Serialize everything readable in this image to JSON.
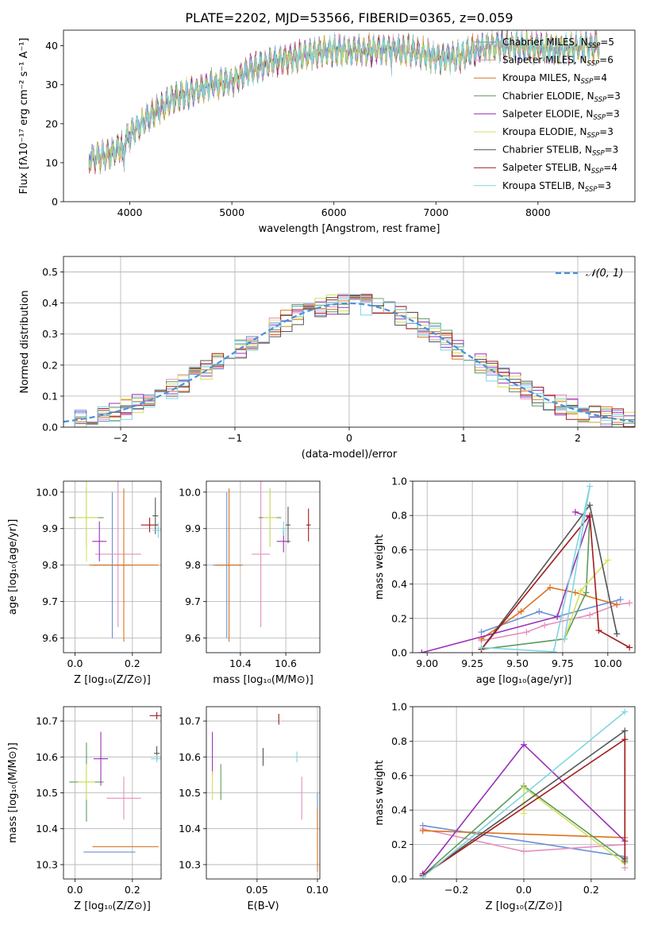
{
  "figure": {
    "title": "PLATE=2202, MJD=53566, FIBERID=0365, z=0.059"
  },
  "model_colors": [
    "#6a8fd8",
    "#e58fbf",
    "#d9731f",
    "#5c9c5c",
    "#9b30b8",
    "#d6df5c",
    "#555555",
    "#a51b1b",
    "#7fd6df"
  ],
  "chart_data": [
    {
      "id": "spectrum",
      "type": "line",
      "xlabel": "wavelength [Angstrom, rest frame]",
      "ylabel": "Flux [fλ10⁻¹⁷ erg cm⁻² s⁻¹ A⁻¹]",
      "xlim": [
        3350,
        8950
      ],
      "ylim": [
        0,
        44
      ],
      "xticks": [
        4000,
        5000,
        6000,
        7000,
        8000
      ],
      "yticks": [
        0,
        10,
        20,
        30,
        40
      ],
      "legend_position": "top-right",
      "series": [
        {
          "name": "Chabrier MILES, N",
          "sub": "SSP",
          "suffix": "=5"
        },
        {
          "name": "Salpeter MILES, N",
          "sub": "SSP",
          "suffix": "=6"
        },
        {
          "name": "Kroupa MILES, N",
          "sub": "SSP",
          "suffix": "=4"
        },
        {
          "name": "Chabrier ELODIE, N",
          "sub": "SSP",
          "suffix": "=3"
        },
        {
          "name": "Salpeter ELODIE, N",
          "sub": "SSP",
          "suffix": "=3"
        },
        {
          "name": "Kroupa ELODIE, N",
          "sub": "SSP",
          "suffix": "=3"
        },
        {
          "name": "Chabrier STELIB, N",
          "sub": "SSP",
          "suffix": "=3"
        },
        {
          "name": "Salpeter STELIB, N",
          "sub": "SSP",
          "suffix": "=4"
        },
        {
          "name": "Kroupa STELIB, N",
          "sub": "SSP",
          "suffix": "=3"
        }
      ],
      "continuum": [
        [
          3600,
          11
        ],
        [
          3800,
          12
        ],
        [
          3900,
          14
        ],
        [
          4000,
          17
        ],
        [
          4200,
          22
        ],
        [
          4400,
          26
        ],
        [
          4600,
          28
        ],
        [
          4800,
          30
        ],
        [
          5000,
          31
        ],
        [
          5200,
          34
        ],
        [
          5400,
          36
        ],
        [
          5600,
          37
        ],
        [
          5800,
          38
        ],
        [
          6000,
          39
        ],
        [
          6200,
          38.5
        ],
        [
          6400,
          39
        ],
        [
          6600,
          39
        ],
        [
          6800,
          38.5
        ],
        [
          7000,
          37
        ],
        [
          7200,
          37
        ],
        [
          7400,
          39
        ],
        [
          7600,
          40
        ],
        [
          7800,
          40
        ],
        [
          8000,
          39.5
        ],
        [
          8200,
          39
        ],
        [
          8400,
          39.5
        ],
        [
          8600,
          40
        ]
      ]
    },
    {
      "id": "residuals",
      "type": "histogram",
      "xlabel": "(data-model)/error",
      "ylabel": "Normed distribution",
      "xlim": [
        -2.5,
        2.5
      ],
      "ylim": [
        0,
        0.55
      ],
      "xticks": [
        -2,
        -1,
        0,
        1,
        2
      ],
      "yticks": [
        0.0,
        0.1,
        0.2,
        0.3,
        0.4,
        0.5
      ],
      "reference_label": "𝒩(0, 1)",
      "legend_position": "top-right",
      "bin_width": 0.1
    },
    {
      "id": "age_vs_Z",
      "type": "scatter",
      "xlabel": "Z [log₁₀(Z/Z⊙)]",
      "ylabel": "age  [log₁₀(age/yr)]",
      "xlim": [
        -0.04,
        0.3
      ],
      "ylim": [
        9.56,
        10.03
      ],
      "xticks": [
        0.0,
        0.2
      ],
      "yticks": [
        9.6,
        9.7,
        9.8,
        9.9,
        10.0
      ],
      "points": [
        {
          "x": 0.13,
          "y": 9.8,
          "xerr": 0.07,
          "yerr": 0.2
        },
        {
          "x": 0.15,
          "y": 9.83,
          "xerr": 0.08,
          "yerr": 0.2
        },
        {
          "x": 0.17,
          "y": 9.8,
          "xerr": 0.12,
          "yerr": 0.21
        },
        {
          "x": 0.04,
          "y": 9.93,
          "xerr": 0.06,
          "yerr": 0.08
        },
        {
          "x": 0.085,
          "y": 9.865,
          "xerr": 0.025,
          "yerr": 0.055
        },
        {
          "x": 0.04,
          "y": 9.93,
          "xerr": 0.04,
          "yerr": 0.12
        },
        {
          "x": 0.28,
          "y": 9.935,
          "xerr": 0.01,
          "yerr": 0.05
        },
        {
          "x": 0.26,
          "y": 9.91,
          "xerr": 0.03,
          "yerr": 0.02
        },
        {
          "x": 0.29,
          "y": 9.895,
          "xerr": 0.02,
          "yerr": 0.02
        }
      ]
    },
    {
      "id": "age_vs_mass",
      "type": "scatter",
      "xlabel": "mass [log₁₀(M/M⊙)]",
      "ylabel": "",
      "xlim": [
        10.25,
        10.75
      ],
      "ylim": [
        9.56,
        10.03
      ],
      "xticks": [
        10.4,
        10.6
      ],
      "yticks": [
        9.6,
        9.7,
        9.8,
        9.9,
        10.0
      ],
      "points": [
        {
          "x": 10.34,
          "y": 9.8,
          "xerr": 0.06,
          "yerr": 0.2
        },
        {
          "x": 10.49,
          "y": 9.83,
          "xerr": 0.04,
          "yerr": 0.2
        },
        {
          "x": 10.35,
          "y": 9.8,
          "xerr": 0.06,
          "yerr": 0.21
        },
        {
          "x": 10.53,
          "y": 9.93,
          "xerr": 0.05,
          "yerr": 0.08
        },
        {
          "x": 10.59,
          "y": 9.865,
          "xerr": 0.03,
          "yerr": 0.03
        },
        {
          "x": 10.53,
          "y": 9.93,
          "xerr": 0.03,
          "yerr": 0.08
        },
        {
          "x": 10.61,
          "y": 9.91,
          "xerr": 0.01,
          "yerr": 0.05
        },
        {
          "x": 10.7,
          "y": 9.91,
          "xerr": 0.01,
          "yerr": 0.045
        },
        {
          "x": 10.59,
          "y": 9.9,
          "xerr": 0.01,
          "yerr": 0.02
        }
      ]
    },
    {
      "id": "mass_weight_vs_age",
      "type": "line",
      "xlabel": "age  [log₁₀(age/yr)]",
      "ylabel": "mass weight",
      "xlim": [
        8.92,
        10.15
      ],
      "ylim": [
        0,
        1.0
      ],
      "xticks": [
        9.0,
        9.25,
        9.5,
        9.75,
        10.0
      ],
      "yticks": [
        0.0,
        0.2,
        0.4,
        0.6,
        0.8,
        1.0
      ],
      "series": [
        {
          "values": [
            [
              9.3,
              0.12
            ],
            [
              9.62,
              0.24
            ],
            [
              9.72,
              0.21
            ],
            [
              10.07,
              0.31
            ]
          ]
        },
        {
          "values": [
            [
              9.3,
              0.07
            ],
            [
              9.55,
              0.12
            ],
            [
              9.65,
              0.16
            ],
            [
              9.9,
              0.22
            ],
            [
              10.05,
              0.28
            ],
            [
              10.12,
              0.29
            ]
          ]
        },
        {
          "values": [
            [
              9.3,
              0.08
            ],
            [
              9.52,
              0.24
            ],
            [
              9.68,
              0.38
            ],
            [
              9.82,
              0.35
            ],
            [
              10.05,
              0.28
            ]
          ]
        },
        {
          "values": [
            [
              9.3,
              0.02
            ],
            [
              9.76,
              0.08
            ],
            [
              9.88,
              0.35
            ],
            [
              9.9,
              0.79
            ]
          ]
        },
        {
          "values": [
            [
              8.97,
              0.0
            ],
            [
              9.72,
              0.21
            ],
            [
              9.9,
              0.79
            ],
            [
              9.82,
              0.82
            ]
          ]
        },
        {
          "values": [
            [
              9.76,
              0.08
            ],
            [
              9.85,
              0.36
            ],
            [
              10.0,
              0.54
            ]
          ]
        },
        {
          "values": [
            [
              9.3,
              0.02
            ],
            [
              9.9,
              0.86
            ],
            [
              10.05,
              0.11
            ]
          ]
        },
        {
          "values": [
            [
              9.3,
              0.02
            ],
            [
              9.9,
              0.8
            ],
            [
              9.95,
              0.13
            ],
            [
              10.12,
              0.03
            ]
          ]
        },
        {
          "values": [
            [
              9.3,
              0.03
            ],
            [
              9.7,
              0.005
            ],
            [
              9.9,
              0.97
            ],
            [
              9.76,
              0.08
            ]
          ]
        }
      ]
    },
    {
      "id": "mass_vs_Z",
      "type": "scatter",
      "xlabel": "Z [log₁₀(Z/Z⊙)]",
      "ylabel": "mass [log₁₀(M/M⊙)]",
      "xlim": [
        -0.04,
        0.3
      ],
      "ylim": [
        10.26,
        10.74
      ],
      "xticks": [
        0.0,
        0.2
      ],
      "yticks": [
        10.3,
        10.4,
        10.5,
        10.6,
        10.7
      ],
      "points": [
        {
          "x": 0.12,
          "y": 10.335,
          "xerr": 0.09,
          "yerr": 0.0
        },
        {
          "x": 0.17,
          "y": 10.485,
          "xerr": 0.06,
          "yerr": 0.06
        },
        {
          "x": 0.176,
          "y": 10.35,
          "xerr": 0.115,
          "yerr": 0.0
        },
        {
          "x": 0.04,
          "y": 10.53,
          "xerr": 0.06,
          "yerr": 0.11
        },
        {
          "x": 0.09,
          "y": 10.595,
          "xerr": 0.025,
          "yerr": 0.075
        },
        {
          "x": 0.04,
          "y": 10.53,
          "xerr": 0.03,
          "yerr": 0.05
        },
        {
          "x": 0.285,
          "y": 10.61,
          "xerr": 0.01,
          "yerr": 0.02
        },
        {
          "x": 0.285,
          "y": 10.715,
          "xerr": 0.025,
          "yerr": 0.01
        },
        {
          "x": 0.285,
          "y": 10.595,
          "xerr": 0.02,
          "yerr": 0.01
        }
      ]
    },
    {
      "id": "mass_vs_ebv",
      "type": "scatter",
      "xlabel": "E(B-V)",
      "ylabel": "",
      "xlim": [
        0.008,
        0.102
      ],
      "ylim": [
        10.26,
        10.74
      ],
      "xticks": [
        0.05,
        0.1
      ],
      "yticks": [
        10.3,
        10.4,
        10.5,
        10.6,
        10.7
      ],
      "points": [
        {
          "x": 0.1,
          "y": 10.45,
          "xerr": 0,
          "yerr": 0.05
        },
        {
          "x": 0.087,
          "y": 10.485,
          "xerr": 0,
          "yerr": 0.06
        },
        {
          "x": 0.1,
          "y": 10.37,
          "xerr": 0,
          "yerr": 0.09
        },
        {
          "x": 0.02,
          "y": 10.53,
          "xerr": 0,
          "yerr": 0.05
        },
        {
          "x": 0.013,
          "y": 10.61,
          "xerr": 0,
          "yerr": 0.06
        },
        {
          "x": 0.013,
          "y": 10.52,
          "xerr": 0,
          "yerr": 0.04
        },
        {
          "x": 0.055,
          "y": 10.6,
          "xerr": 0,
          "yerr": 0.025
        },
        {
          "x": 0.068,
          "y": 10.705,
          "xerr": 0,
          "yerr": 0.015
        },
        {
          "x": 0.083,
          "y": 10.6,
          "xerr": 0,
          "yerr": 0.015
        }
      ]
    },
    {
      "id": "mass_weight_vs_Z",
      "type": "line",
      "xlabel": "Z [log₁₀(Z/Z⊙)]",
      "ylabel": "mass weight",
      "xlim": [
        -0.33,
        0.33
      ],
      "ylim": [
        0,
        1.0
      ],
      "xticks": [
        -0.2,
        0.0,
        0.2
      ],
      "yticks": [
        0.0,
        0.2,
        0.4,
        0.6,
        0.8,
        1.0
      ],
      "series": [
        {
          "values": [
            [
              -0.3,
              0.31
            ],
            [
              0.3,
              0.13
            ]
          ]
        },
        {
          "values": [
            [
              -0.3,
              0.29
            ],
            [
              0.0,
              0.16
            ],
            [
              0.3,
              0.2
            ],
            [
              0.3,
              0.065
            ]
          ]
        },
        {
          "values": [
            [
              -0.3,
              0.28
            ],
            [
              0.3,
              0.24
            ]
          ]
        },
        {
          "values": [
            [
              -0.3,
              0.02
            ],
            [
              0.0,
              0.54
            ],
            [
              0.3,
              0.11
            ]
          ]
        },
        {
          "values": [
            [
              -0.3,
              0.03
            ],
            [
              0.0,
              0.78
            ],
            [
              0.3,
              0.22
            ]
          ]
        },
        {
          "values": [
            [
              0.0,
              0.38
            ],
            [
              0.0,
              0.53
            ],
            [
              0.3,
              0.09
            ]
          ]
        },
        {
          "values": [
            [
              -0.3,
              0.02
            ],
            [
              0.3,
              0.86
            ],
            [
              0.3,
              0.1
            ]
          ]
        },
        {
          "values": [
            [
              -0.3,
              0.02
            ],
            [
              0.3,
              0.81
            ],
            [
              0.3,
              0.12
            ]
          ]
        },
        {
          "values": [
            [
              -0.3,
              0.01
            ],
            [
              0.3,
              0.97
            ]
          ]
        }
      ]
    }
  ]
}
